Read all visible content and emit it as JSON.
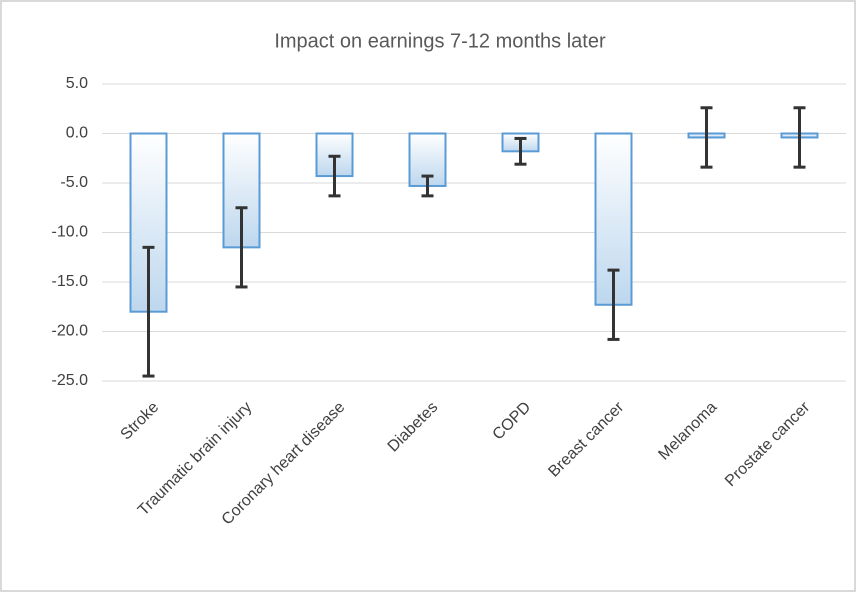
{
  "chart_data": {
    "type": "bar",
    "title": "Impact on earnings 7-12 months later",
    "categories": [
      "Stroke",
      "Traumatic brain injury",
      "Coronary heart disease",
      "Diabetes",
      "COPD",
      "Breast cancer",
      "Melanoma",
      "Prostate cancer"
    ],
    "values": [
      -18.0,
      -11.5,
      -4.3,
      -5.3,
      -1.8,
      -17.3,
      -0.4,
      -0.4
    ],
    "errors": [
      6.5,
      4.0,
      2.0,
      1.0,
      1.3,
      3.5,
      3.0,
      3.0
    ],
    "color": "#5b9bd5",
    "error_color": "#333333",
    "ylim": [
      -25,
      5
    ],
    "yticks": [
      {
        "value": 5,
        "label": "5.0"
      },
      {
        "value": 0,
        "label": "0.0"
      },
      {
        "value": -5,
        "label": "-5.0"
      },
      {
        "value": -10,
        "label": "-10.0"
      },
      {
        "value": -15,
        "label": "-15.0"
      },
      {
        "value": -20,
        "label": "-20.0"
      },
      {
        "value": -25,
        "label": "-25.0"
      }
    ],
    "grid": true
  }
}
